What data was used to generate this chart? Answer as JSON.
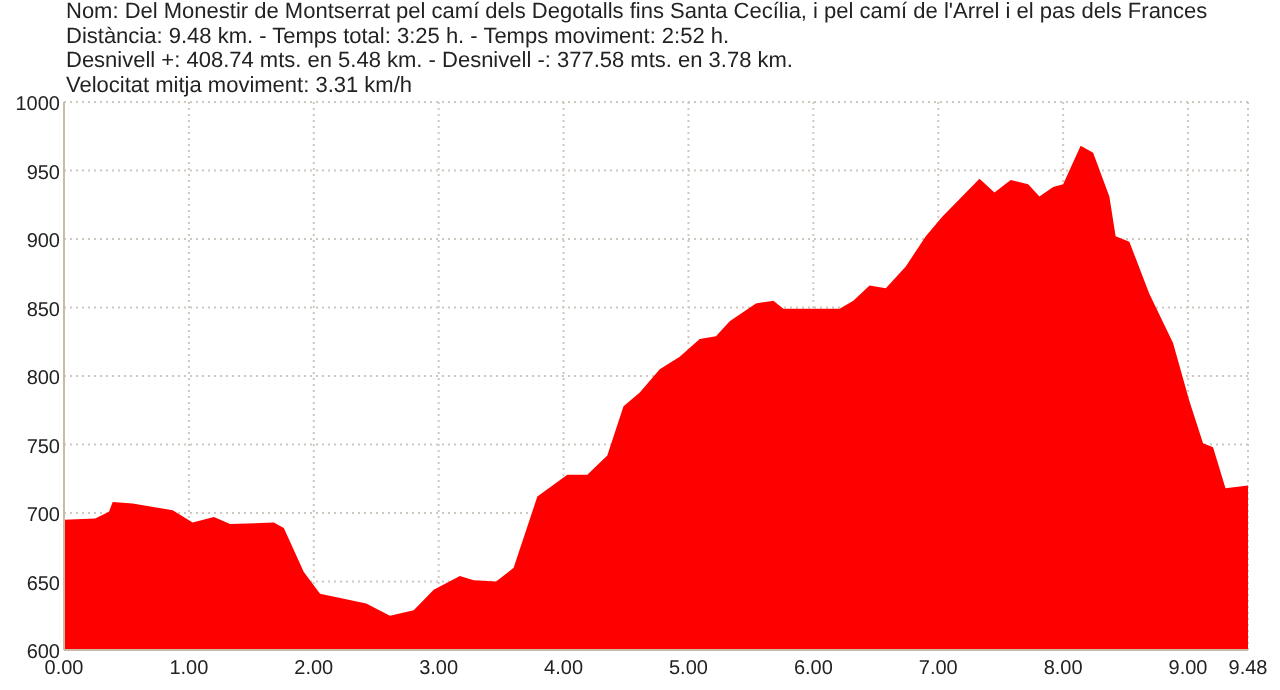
{
  "chart_data": {
    "type": "area",
    "title": "Nom: Del Monestir de Montserrat pel camí dels Degotalls fins Santa Cecília, i pel camí de l'Arrel i el pas dels Frances",
    "annotations": [
      "Distància: 9.48 km. - Temps total: 3:25 h. - Temps moviment: 2:52 h.",
      "Desnivell +: 408.74 mts. en 5.48 km. - Desnivell -: 377.58 mts. en 3.78 km.",
      "Velocitat mitja moviment: 3.31 km/h"
    ],
    "x": [
      0,
      0.25,
      0.36,
      0.39,
      0.55,
      0.87,
      1.03,
      1.2,
      1.33,
      1.68,
      1.76,
      1.92,
      2.05,
      2.42,
      2.61,
      2.8,
      2.96,
      3.17,
      3.28,
      3.46,
      3.6,
      3.79,
      4.03,
      4.19,
      4.35,
      4.48,
      4.61,
      4.77,
      4.93,
      5.09,
      5.22,
      5.33,
      5.54,
      5.68,
      5.76,
      6.21,
      6.32,
      6.45,
      6.58,
      6.74,
      6.9,
      7.03,
      7.33,
      7.45,
      7.58,
      7.72,
      7.81,
      7.92,
      8.0,
      8.14,
      8.24,
      8.37,
      8.42,
      8.53,
      8.69,
      8.88,
      9.01,
      9.12,
      9.2,
      9.3,
      9.48
    ],
    "values": [
      695,
      696,
      701,
      708,
      707,
      702,
      693,
      697,
      692,
      693,
      689,
      657,
      641,
      634,
      625,
      629,
      644,
      654,
      651,
      650,
      660,
      712,
      728,
      728,
      742,
      778,
      788,
      805,
      814,
      827,
      829,
      840,
      853,
      855,
      849,
      849,
      855,
      866,
      864,
      880,
      902,
      916,
      944,
      934,
      943,
      940,
      931,
      938,
      940,
      968,
      963,
      931,
      902,
      898,
      860,
      824,
      782,
      751,
      748,
      718,
      720
    ],
    "color": "#ff0000",
    "xlim": [
      0,
      9.48
    ],
    "xticks": [
      {
        "value": 0,
        "label": "0.00"
      },
      {
        "value": 1,
        "label": "1.00"
      },
      {
        "value": 2,
        "label": "2.00"
      },
      {
        "value": 3,
        "label": "3.00"
      },
      {
        "value": 4,
        "label": "4.00"
      },
      {
        "value": 5,
        "label": "5.00"
      },
      {
        "value": 6,
        "label": "6.00"
      },
      {
        "value": 7,
        "label": "7.00"
      },
      {
        "value": 8,
        "label": "8.00"
      },
      {
        "value": 9,
        "label": "9.00"
      },
      {
        "value": 9.48,
        "label": "9.48"
      }
    ],
    "ylim": [
      600,
      1000
    ],
    "yticks": [
      600,
      650,
      700,
      750,
      800,
      850,
      900,
      950,
      1000
    ],
    "grid": true
  }
}
